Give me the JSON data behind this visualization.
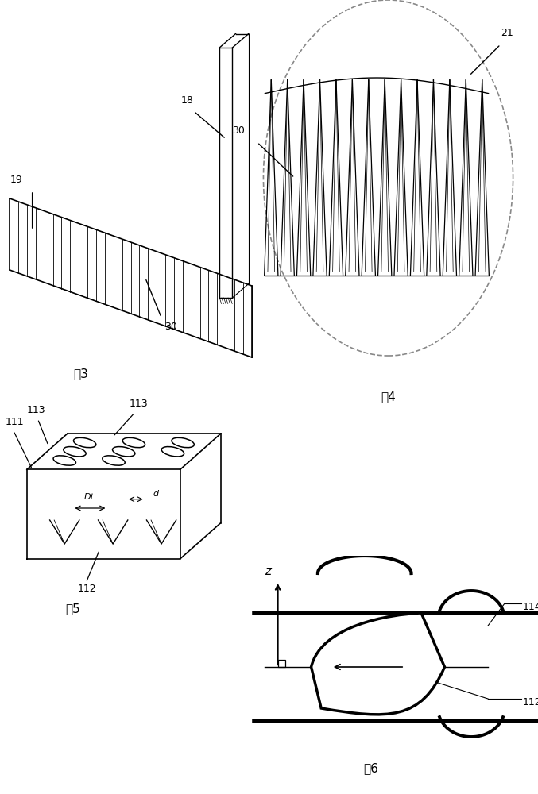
{
  "bg_color": "#ffffff",
  "fig3_label": "图3",
  "fig4_label": "图4",
  "fig5_label": "图5",
  "fig6_label": "图6",
  "label_18": "18",
  "label_19": "19",
  "label_30": "30",
  "label_21": "21",
  "label_111": "111",
  "label_112": "112",
  "label_113a": "113",
  "label_113b": "113",
  "label_Dt": "Dt",
  "label_d": "d",
  "label_114": "114",
  "label_z": "z",
  "line_color": "#000000",
  "dashed_color": "#999999"
}
